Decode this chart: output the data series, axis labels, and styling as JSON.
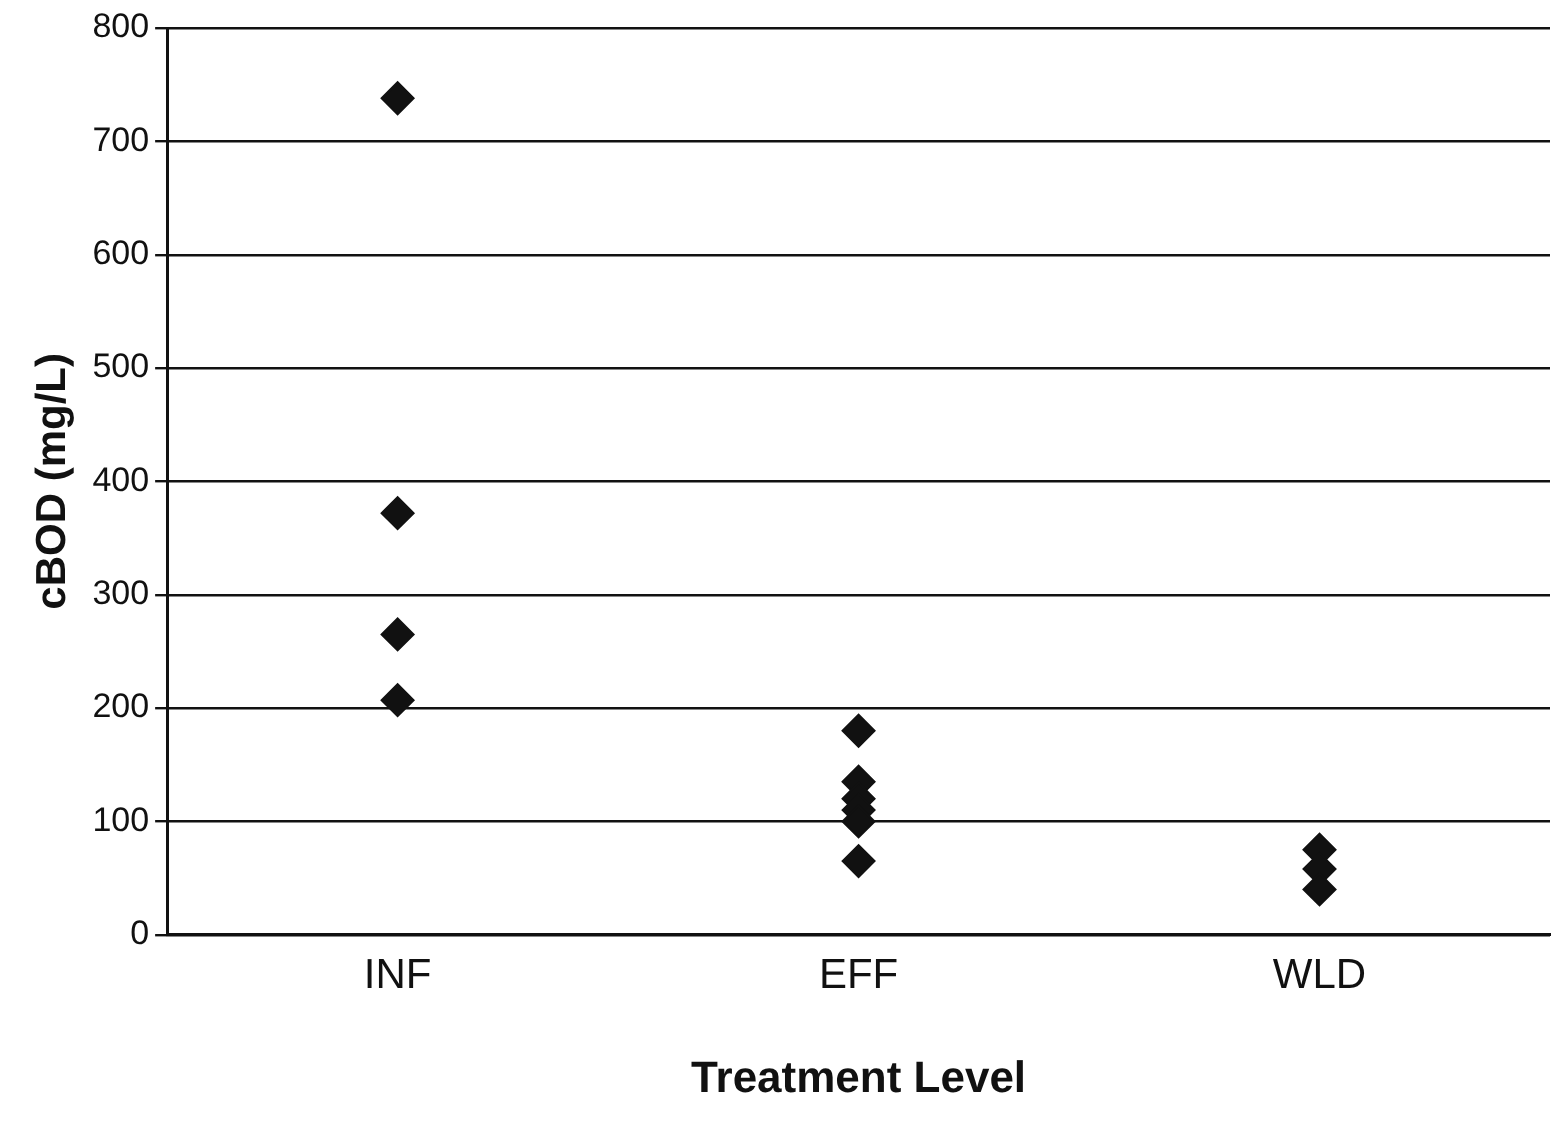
{
  "chart_data": {
    "type": "scatter",
    "xlabel": "Treatment Level",
    "ylabel": "cBOD (mg/L)",
    "categories": [
      "INF",
      "EFF",
      "WLD"
    ],
    "series": [
      {
        "color": "#111111",
        "x": [
          "INF",
          "INF",
          "INF",
          "INF",
          "EFF",
          "EFF",
          "EFF",
          "EFF",
          "EFF",
          "EFF",
          "WLD",
          "WLD",
          "WLD"
        ],
        "values": [
          738,
          372,
          265,
          207,
          180,
          135,
          120,
          110,
          100,
          65,
          75,
          58,
          40
        ]
      }
    ],
    "ylim": [
      0,
      800
    ],
    "yticks": [
      0,
      100,
      200,
      300,
      400,
      500,
      600,
      700,
      800
    ],
    "grid": "y",
    "legend": false,
    "marker": "diamond"
  }
}
